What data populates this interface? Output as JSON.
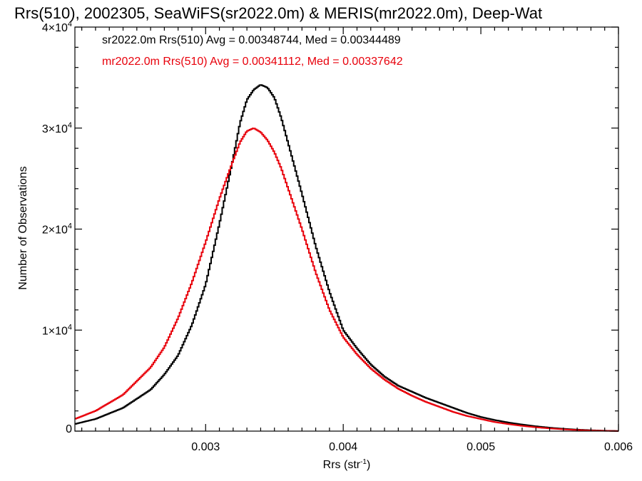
{
  "chart_data": {
    "type": "line",
    "title": "Rrs(510), 2002305, SeaWiFS(sr2022.0m) & MERIS(mr2022.0m), Deep-Wat",
    "xlabel": "Rrs (str",
    "xlabel_sup": "-1",
    "xlabel_close": ")",
    "ylabel": "Number of Observations",
    "xlim": [
      0.00205,
      0.006
    ],
    "ylim": [
      0,
      40000
    ],
    "x_ticks": [
      {
        "value": 0.003,
        "label": "0.003"
      },
      {
        "value": 0.004,
        "label": "0.004"
      },
      {
        "value": 0.005,
        "label": "0.005"
      },
      {
        "value": 0.006,
        "label": "0.006"
      }
    ],
    "y_ticks": [
      {
        "value": 0,
        "mant": "0",
        "exp": ""
      },
      {
        "value": 10000,
        "mant": "1×10",
        "exp": "4"
      },
      {
        "value": 20000,
        "mant": "2×10",
        "exp": "4"
      },
      {
        "value": 30000,
        "mant": "3×10",
        "exp": "4"
      },
      {
        "value": 40000,
        "mant": "4×10",
        "exp": "4"
      }
    ],
    "legend_position": "top-left",
    "series": [
      {
        "name": "sr2022.0m",
        "label": "sr2022.0m Rrs(510) Avg = 0.00348744, Med = 0.00344489",
        "color": "#000000",
        "x": [
          0.00205,
          0.0022,
          0.0024,
          0.0026,
          0.0027,
          0.0028,
          0.0029,
          0.003,
          0.0031,
          0.0032,
          0.00325,
          0.0033,
          0.00335,
          0.0034,
          0.00345,
          0.0035,
          0.00355,
          0.0036,
          0.0037,
          0.0038,
          0.0039,
          0.004,
          0.0041,
          0.0042,
          0.0043,
          0.0044,
          0.0045,
          0.0046,
          0.0047,
          0.0048,
          0.0049,
          0.005,
          0.0051,
          0.0052,
          0.0053,
          0.0054,
          0.0055,
          0.0056,
          0.0057,
          0.0058,
          0.0059,
          0.006
        ],
        "values": [
          700,
          1200,
          2300,
          4100,
          5600,
          7500,
          10500,
          14500,
          20500,
          27000,
          30500,
          32800,
          33800,
          34300,
          34000,
          33000,
          31000,
          28500,
          23500,
          18300,
          13800,
          10000,
          8200,
          6600,
          5400,
          4500,
          3900,
          3300,
          2800,
          2300,
          1800,
          1400,
          1100,
          850,
          650,
          480,
          340,
          230,
          150,
          90,
          45,
          10
        ]
      },
      {
        "name": "mr2022.0m",
        "label": "mr2022.0m Rrs(510) Avg = 0.00341112, Med = 0.00337642",
        "color": "#e8000b",
        "x": [
          0.00205,
          0.0022,
          0.0024,
          0.0026,
          0.0027,
          0.0028,
          0.0029,
          0.003,
          0.0031,
          0.0032,
          0.00325,
          0.0033,
          0.00335,
          0.0034,
          0.00345,
          0.0035,
          0.00355,
          0.0036,
          0.0037,
          0.0038,
          0.0039,
          0.004,
          0.0041,
          0.0042,
          0.0043,
          0.0044,
          0.0045,
          0.0046,
          0.0047,
          0.0048,
          0.0049,
          0.005,
          0.0051,
          0.0052,
          0.0053,
          0.0054,
          0.0055,
          0.0056,
          0.0057,
          0.0058,
          0.0059,
          0.006
        ],
        "values": [
          1200,
          2000,
          3600,
          6300,
          8300,
          11200,
          14700,
          18700,
          23000,
          26800,
          28600,
          29700,
          30000,
          29600,
          28800,
          27600,
          26000,
          24000,
          20000,
          15700,
          12000,
          9300,
          7600,
          6200,
          5100,
          4200,
          3500,
          2900,
          2400,
          1900,
          1500,
          1200,
          900,
          700,
          520,
          380,
          270,
          180,
          110,
          60,
          30,
          10
        ]
      }
    ]
  }
}
